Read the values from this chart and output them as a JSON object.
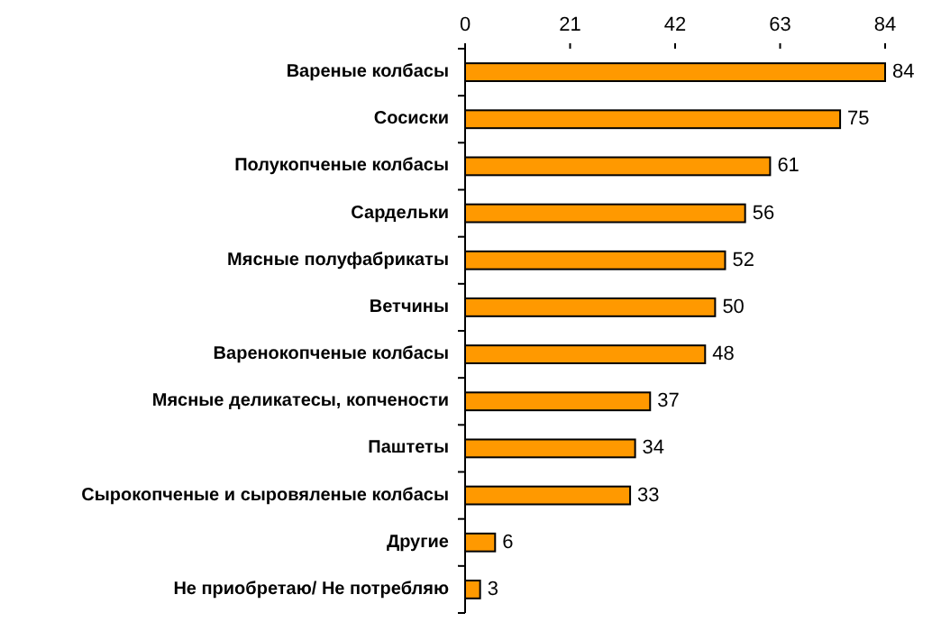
{
  "chart_data": {
    "type": "bar",
    "orientation": "horizontal",
    "categories": [
      "Вареные колбасы",
      "Сосиски",
      "Полукопченые колбасы",
      "Сардельки",
      "Мясные полуфабрикаты",
      "Ветчины",
      "Варенокопченые колбасы",
      "Мясные деликатесы, копчености",
      "Паштеты",
      "Сырокопченые и сыровяленые колбасы",
      "Другие",
      "Не приобретаю/ Не потребляю"
    ],
    "values": [
      84,
      75,
      61,
      56,
      52,
      50,
      48,
      37,
      34,
      33,
      6,
      3
    ],
    "color": "#ff9900",
    "xlim": [
      0,
      84
    ],
    "xticks": [
      0,
      21,
      42,
      63,
      84
    ],
    "data_labels": true,
    "grid": false
  }
}
